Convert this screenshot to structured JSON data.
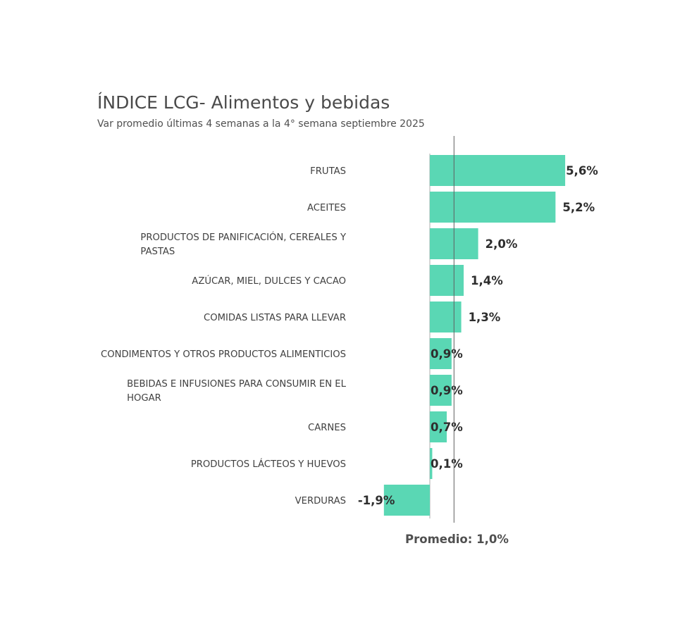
{
  "chart_data": {
    "type": "bar",
    "orientation": "horizontal",
    "title": "ÍNDICE LCG- Alimentos y bebidas",
    "subtitle": "Var promedio últimas 4 semanas a la 4° semana septiembre 2025",
    "categories": [
      "FRUTAS",
      "ACEITES",
      "PRODUCTOS DE PANIFICACIÓN, CEREALES Y PASTAS",
      "AZÚCAR, MIEL, DULCES Y CACAO",
      "COMIDAS LISTAS PARA LLEVAR",
      "CONDIMENTOS Y OTROS PRODUCTOS ALIMENTICIOS",
      "BEBIDAS E INFUSIONES PARA CONSUMIR EN EL HOGAR",
      "CARNES",
      "PRODUCTOS LÁCTEOS Y HUEVOS",
      "VERDURAS"
    ],
    "values": [
      5.6,
      5.2,
      2.0,
      1.4,
      1.3,
      0.9,
      0.9,
      0.7,
      0.1,
      -1.9
    ],
    "value_labels": [
      "5,6%",
      "5,2%",
      "2,0%",
      "1,4%",
      "1,3%",
      "0,9%",
      "0,9%",
      "0,7%",
      "0,1%",
      "-1,9%"
    ],
    "average": 1.0,
    "average_label": "Promedio: 1,0%",
    "bar_color": "#5ad7b4",
    "axis_color": "#c8c8c8",
    "average_line_color": "#5f5f5f",
    "legend": "none",
    "grid": false
  }
}
